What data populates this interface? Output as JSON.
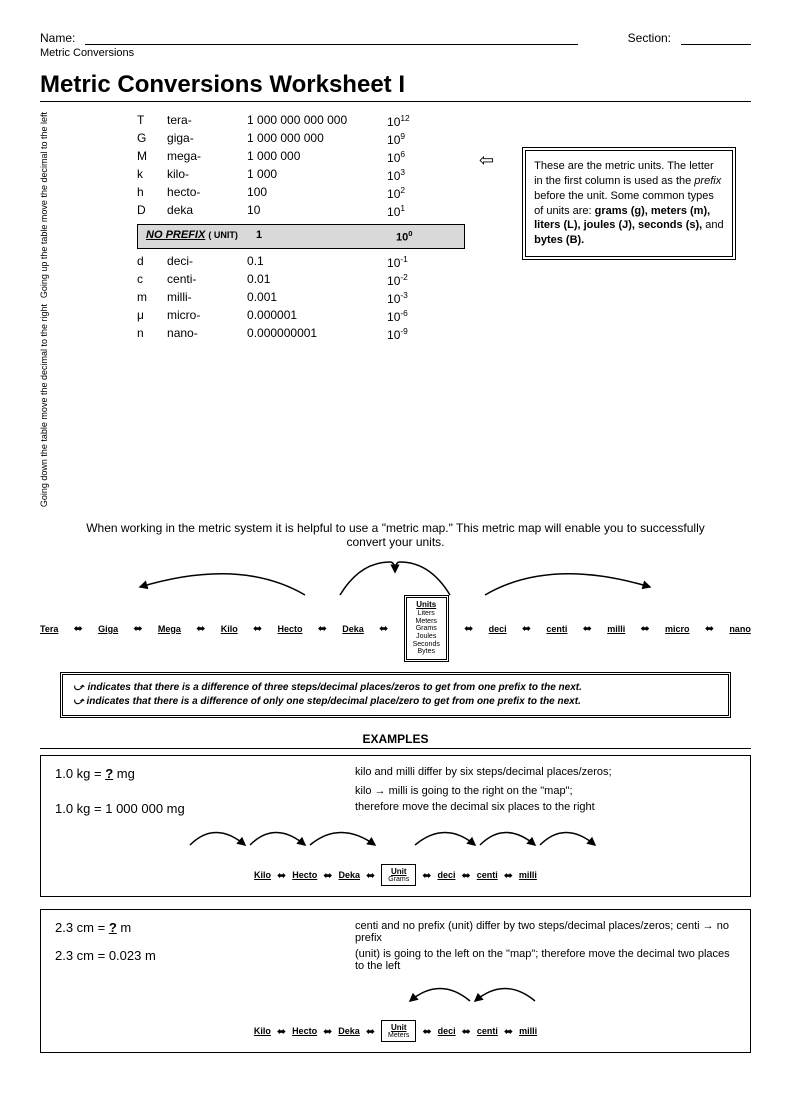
{
  "header": {
    "name_label": "Name:",
    "section_label": "Section:",
    "subtitle": "Metric Conversions"
  },
  "title": "Metric Conversions Worksheet I",
  "vert_up": "Going up the table move the decimal to the  left",
  "vert_down": "Going down the table move the decimal to the  right",
  "prefixes_top": [
    {
      "sym": "T",
      "name": "tera-",
      "val": "1 000 000 000 000",
      "exp": "12"
    },
    {
      "sym": "G",
      "name": "giga-",
      "val": "1 000 000 000",
      "exp": "9"
    },
    {
      "sym": "M",
      "name": "mega-",
      "val": "1 000 000",
      "exp": "6"
    },
    {
      "sym": "k",
      "name": "kilo-",
      "val": "1 000",
      "exp": "3"
    },
    {
      "sym": "h",
      "name": "hecto-",
      "val": "100",
      "exp": "2"
    },
    {
      "sym": "D",
      "name": "deka",
      "val": "10",
      "exp": "1"
    }
  ],
  "no_prefix": {
    "label": "NO PREFIX",
    "paren": "( UNIT)",
    "val": "1",
    "exp": "0"
  },
  "prefixes_bot": [
    {
      "sym": "d",
      "name": "deci-",
      "val": "0.1",
      "exp": "-1"
    },
    {
      "sym": "c",
      "name": "centi-",
      "val": "0.01",
      "exp": "-2"
    },
    {
      "sym": "m",
      "name": "milli-",
      "val": "0.001",
      "exp": "-3"
    },
    {
      "sym": "μ",
      "name": "micro-",
      "val": "0.000001",
      "exp": "-6"
    },
    {
      "sym": "n",
      "name": "nano-",
      "val": "0.000000001",
      "exp": "-9"
    }
  ],
  "info_box": "These are the metric units. The letter in the first column is used as the <i>prefix</i> before the unit.  Some common types of units are: <b>grams (g), meters (m), liters (L), joules (J), seconds (s),</b> and <b>bytes (B).</b>",
  "paragraph": "When working in the metric system it is helpful to use a \"metric map.\"  This metric map will enable you to successfully convert your units.",
  "map_left": [
    "Tera",
    "Giga",
    "Mega",
    "Kilo",
    "Hecto",
    "Deka"
  ],
  "map_right": [
    "deci",
    "centi",
    "milli",
    "micro",
    "nano"
  ],
  "units_list": [
    "Liters",
    "Meters",
    "Grams",
    "Joules",
    "Seconds",
    "Bytes"
  ],
  "units_title": "Units",
  "legend": {
    "line1": "indicates that there is a difference of  three steps/decimal places/zeros to get from one prefix to the next.",
    "line2": "indicates that  there is a difference of only one step/decimal place/zero to get from one prefix to the next."
  },
  "examples_title": "EXAMPLES",
  "ex1": {
    "q": "1.0 kg  =  ? mg",
    "a": "1.0 kg  =  1 000 000 mg",
    "exp1": "kilo and milli differ by six steps/decimal places/zeros;",
    "exp2": "kilo → milli is going to the right on the \"map\";",
    "exp3": "therefore move the decimal six places to the right",
    "unit": "Grams"
  },
  "ex2": {
    "q": "2.3 cm = ? m",
    "a": "2.3 cm = 0.023 m",
    "exp1": "centi and no prefix (unit) differ by two steps/decimal places/zeros; centi → no prefix",
    "exp2": "(unit) is going to the left on the \"map\"; therefore move the decimal two places to the left",
    "unit": "Meters"
  },
  "mini_nodes": [
    "Kilo",
    "Hecto",
    "Deka"
  ],
  "mini_nodes_r": [
    "deci",
    "centi",
    "milli"
  ],
  "unit_label": "Unit"
}
